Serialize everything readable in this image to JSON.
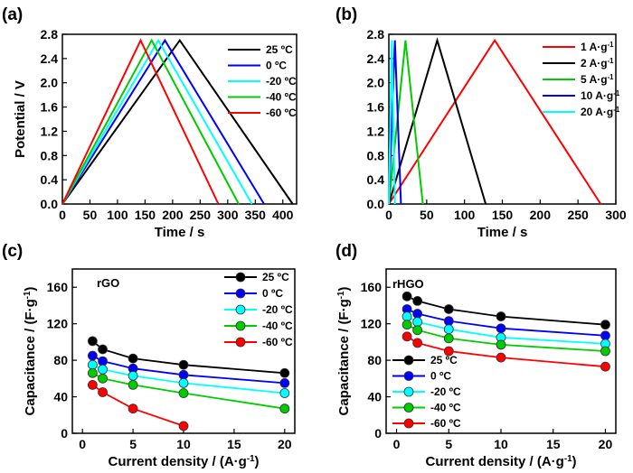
{
  "chart_data": [
    {
      "panel": "(a)",
      "type": "line",
      "xlabel": "Time / s",
      "ylabel": "Potential / V",
      "xlim": [
        0,
        425
      ],
      "ylim": [
        0,
        2.8
      ],
      "xticks": [
        "0",
        "50",
        "100",
        "150",
        "200",
        "250",
        "300",
        "350",
        "400"
      ],
      "yticks": [
        "0.0",
        "0.4",
        "0.8",
        "1.2",
        "1.6",
        "2.0",
        "2.4",
        "2.8"
      ],
      "legend_position": "top-right",
      "series": [
        {
          "name": "25 ºC",
          "color": "#000000",
          "x": [
            0,
            213,
            418
          ],
          "y": [
            0,
            2.7,
            0
          ]
        },
        {
          "name": "0 ºC",
          "color": "#0000ff",
          "x": [
            0,
            186,
            366
          ],
          "y": [
            0,
            2.7,
            0
          ]
        },
        {
          "name": "-20 ºC",
          "color": "#00ffff",
          "x": [
            0,
            174,
            344
          ],
          "y": [
            0,
            2.7,
            0
          ]
        },
        {
          "name": "-40 ºC",
          "color": "#00cc00",
          "x": [
            0,
            162,
            320
          ],
          "y": [
            0,
            2.7,
            0
          ]
        },
        {
          "name": "-60 ºC",
          "color": "#ff0000",
          "x": [
            0,
            142,
            283
          ],
          "y": [
            0,
            2.7,
            0
          ]
        }
      ]
    },
    {
      "panel": "(b)",
      "type": "line",
      "xlabel": "Time / s",
      "ylabel": "",
      "xlim": [
        0,
        300
      ],
      "ylim": [
        0,
        2.8
      ],
      "xticks": [
        "0",
        "50",
        "100",
        "150",
        "200",
        "250",
        "300"
      ],
      "yticks": [
        "0.0",
        "0.4",
        "0.8",
        "1.2",
        "1.6",
        "2.0",
        "2.4",
        "2.8"
      ],
      "legend_position": "top-right",
      "series": [
        {
          "name": "1 A·g⁻¹",
          "color": "#ff0000",
          "x": [
            0,
            140,
            280
          ],
          "y": [
            0,
            2.7,
            0
          ]
        },
        {
          "name": "2 A·g⁻¹",
          "color": "#000000",
          "x": [
            0,
            64,
            128
          ],
          "y": [
            0,
            2.7,
            0
          ]
        },
        {
          "name": "5 A·g⁻¹",
          "color": "#00cc00",
          "x": [
            0,
            22,
            45
          ],
          "y": [
            0,
            2.7,
            0
          ]
        },
        {
          "name": "10 A·g⁻¹",
          "color": "#0000ff",
          "x": [
            0,
            8,
            16
          ],
          "y": [
            0,
            2.7,
            0
          ]
        },
        {
          "name": "20 A·g⁻¹",
          "color": "#00ffff",
          "x": [
            0,
            4,
            8
          ],
          "y": [
            0,
            2.7,
            0
          ]
        }
      ]
    },
    {
      "panel": "(c)",
      "type": "line",
      "annotation": "rGO",
      "xlabel": "Current density / (A·g⁻¹)",
      "ylabel": "Capacitance / (F·g⁻¹)",
      "xlim": [
        -1,
        21
      ],
      "ylim": [
        0,
        180
      ],
      "xticks": [
        "0",
        "5",
        "10",
        "15",
        "20"
      ],
      "yticks": [
        "0",
        "40",
        "80",
        "120",
        "160"
      ],
      "legend_position": "top-right",
      "series": [
        {
          "name": "25 ºC",
          "color": "#000000",
          "x": [
            1,
            2,
            5,
            10,
            20
          ],
          "y": [
            101,
            92,
            82,
            75,
            66
          ]
        },
        {
          "name": "0 ºC",
          "color": "#0000ff",
          "x": [
            1,
            2,
            5,
            10,
            20
          ],
          "y": [
            85,
            79,
            71,
            64,
            55
          ]
        },
        {
          "name": "-20 ºC",
          "color": "#00ffff",
          "x": [
            1,
            2,
            5,
            10,
            20
          ],
          "y": [
            75,
            70,
            63,
            55,
            44
          ]
        },
        {
          "name": "-40 ºC",
          "color": "#00cc00",
          "x": [
            1,
            2,
            5,
            10,
            20
          ],
          "y": [
            66,
            60,
            53,
            44,
            27
          ]
        },
        {
          "name": "-60 ºC",
          "color": "#ff0000",
          "x": [
            1,
            2,
            5,
            10
          ],
          "y": [
            53,
            45,
            27,
            8
          ]
        }
      ]
    },
    {
      "panel": "(d)",
      "type": "line",
      "annotation": "rHGO",
      "xlabel": "Current density / (A·g⁻¹)",
      "ylabel": "Capacitance / (F·g⁻¹)",
      "xlim": [
        -1,
        21
      ],
      "ylim": [
        0,
        180
      ],
      "xticks": [
        "0",
        "5",
        "10",
        "15",
        "20"
      ],
      "yticks": [
        "0",
        "40",
        "80",
        "120",
        "160"
      ],
      "legend_position": "left",
      "series": [
        {
          "name": "25 ºC",
          "color": "#000000",
          "x": [
            1,
            2,
            5,
            10,
            20
          ],
          "y": [
            150,
            145,
            136,
            128,
            119
          ]
        },
        {
          "name": "0 ºC",
          "color": "#0000ff",
          "x": [
            1,
            2,
            5,
            10,
            20
          ],
          "y": [
            136,
            131,
            123,
            115,
            107
          ]
        },
        {
          "name": "-20 ºC",
          "color": "#00ffff",
          "x": [
            1,
            2,
            5,
            10,
            20
          ],
          "y": [
            128,
            122,
            114,
            105,
            98
          ]
        },
        {
          "name": "-40 ºC",
          "color": "#00cc00",
          "x": [
            1,
            2,
            5,
            10,
            20
          ],
          "y": [
            119,
            113,
            104,
            97,
            90
          ]
        },
        {
          "name": "-60 ºC",
          "color": "#ff0000",
          "x": [
            1,
            2,
            5,
            10,
            20
          ],
          "y": [
            106,
            99,
            90,
            83,
            73
          ]
        }
      ]
    }
  ]
}
